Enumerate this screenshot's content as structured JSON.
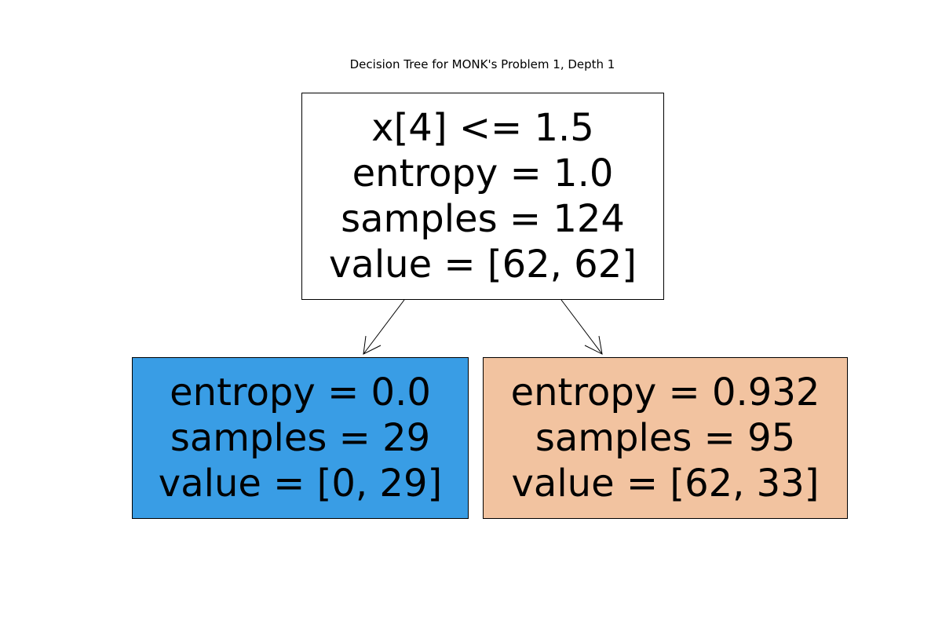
{
  "title": "Decision Tree for MONK's Problem 1, Depth 1",
  "tree": {
    "root": {
      "lines": [
        "x[4] <= 1.5",
        "entropy = 1.0",
        "samples = 124",
        "value = [62, 62]"
      ],
      "fill": "#ffffff"
    },
    "left": {
      "lines": [
        "entropy = 0.0",
        "samples = 29",
        "value = [0, 29]"
      ],
      "fill": "#399de5"
    },
    "right": {
      "lines": [
        "entropy = 0.932",
        "samples = 95",
        "value = [62, 33]"
      ],
      "fill": "#f2c3a0"
    }
  }
}
